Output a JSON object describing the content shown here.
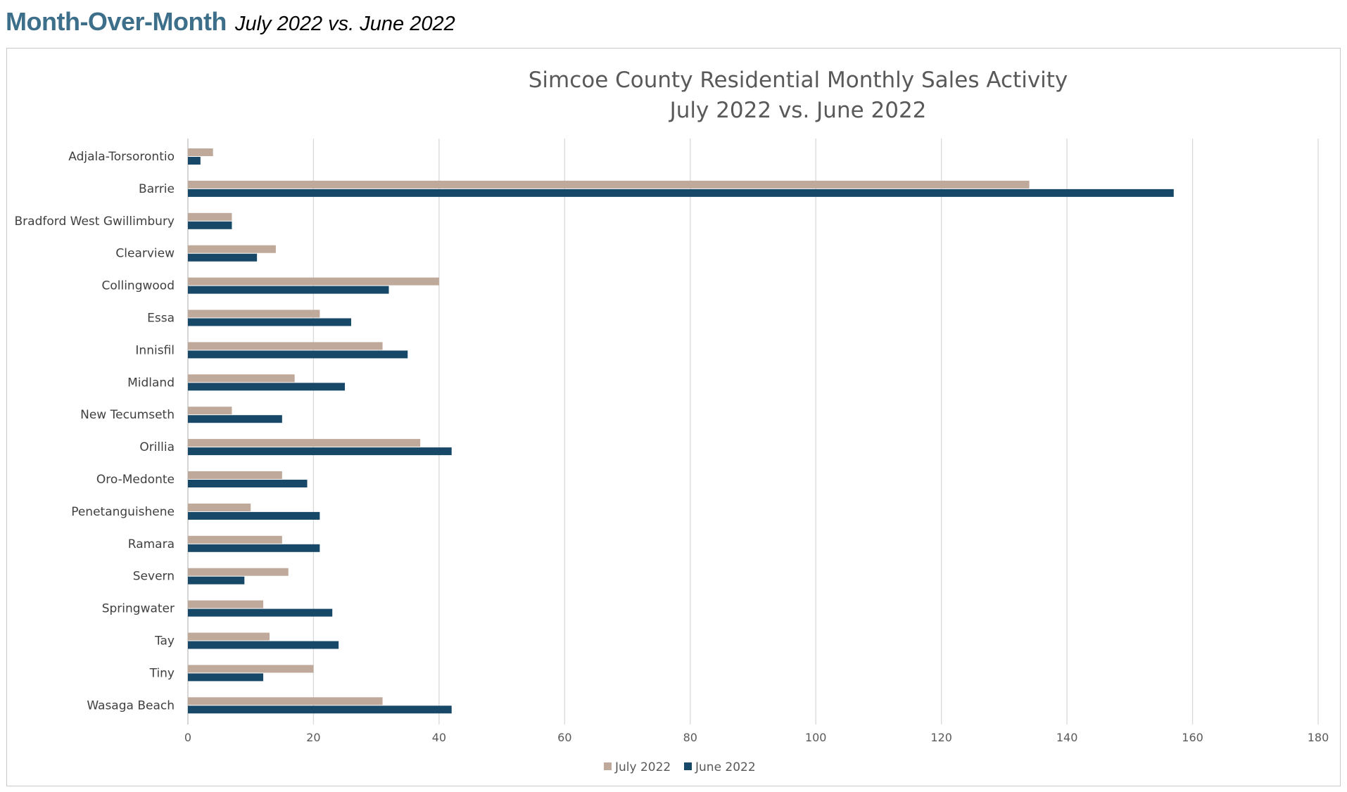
{
  "header": {
    "title": "Month-Over-Month",
    "subtitle": "July 2022 vs. June 2022"
  },
  "colors": {
    "header_title": "#3d6f8b",
    "july": "#bfa99a",
    "june": "#184868",
    "gridline": "#d9d9d9"
  },
  "chart_data": {
    "type": "bar",
    "orientation": "horizontal",
    "title": "Simcoe County Residential Monthly Sales Activity",
    "subtitle": "July 2022 vs. June 2022",
    "xlabel": "",
    "ylabel": "",
    "xlim": [
      0,
      180
    ],
    "xticks": [
      0,
      20,
      40,
      60,
      80,
      100,
      120,
      140,
      160,
      180
    ],
    "grid": true,
    "legend_position": "bottom",
    "categories": [
      "Adjala-Torsorontio",
      "Barrie",
      "Bradford West Gwillimbury",
      "Clearview",
      "Collingwood",
      "Essa",
      "Innisfil",
      "Midland",
      "New Tecumseth",
      "Orillia",
      "Oro-Medonte",
      "Penetanguishene",
      "Ramara",
      "Severn",
      "Springwater",
      "Tay",
      "Tiny",
      "Wasaga Beach"
    ],
    "series": [
      {
        "name": "July 2022",
        "color": "#bfa99a",
        "values": [
          4,
          134,
          7,
          14,
          40,
          21,
          31,
          17,
          7,
          37,
          15,
          10,
          15,
          16,
          12,
          13,
          20,
          31
        ]
      },
      {
        "name": "June 2022",
        "color": "#184868",
        "values": [
          2,
          157,
          7,
          11,
          32,
          26,
          35,
          25,
          15,
          42,
          19,
          21,
          21,
          9,
          23,
          24,
          12,
          42
        ]
      }
    ]
  }
}
